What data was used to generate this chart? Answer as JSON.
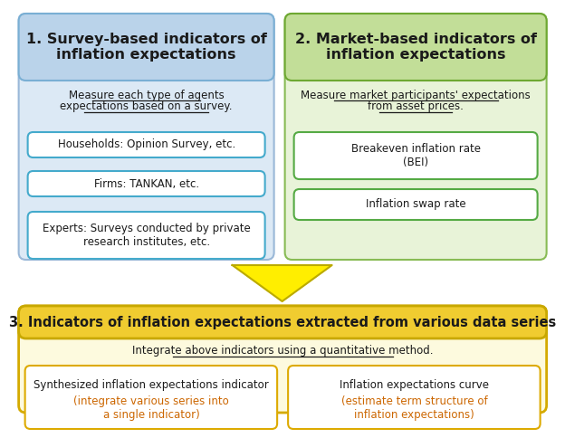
{
  "fig_width": 5.93,
  "fig_height": 4.51,
  "bg_color": "#ffffff",
  "box1_title": "1. Survey-based indicators of\ninflation expectations",
  "box1_bg": "#dce9f5",
  "box1_border": "#9ab8d8",
  "box1_header_bg": "#bad3ea",
  "box1_header_border": "#7aafd4",
  "box2_title": "2. Market-based indicators of\ninflation expectations",
  "box2_bg": "#e8f3d8",
  "box2_border": "#88bb55",
  "box2_header_bg": "#c2de98",
  "box2_header_border": "#6ea832",
  "box3_title": "3. Indicators of inflation expectations extracted from various data series",
  "box3_bg": "#fdfade",
  "box3_border": "#d4aa00",
  "box3_header_bg": "#f0cc30",
  "box3_header_border": "#c8a800",
  "survey_desc_lines": [
    "Measure each type of agents",
    "expectations based on a survey."
  ],
  "survey_items": [
    "Households: Opinion Survey, etc.",
    "Firms: TANKAN, etc.",
    "Experts: Surveys conducted by private\nresearch institutes, etc."
  ],
  "survey_item_border": "#44aacc",
  "market_desc_lines": [
    "Measure market participants' expectations",
    "from asset prices."
  ],
  "market_items": [
    "Breakeven inflation rate\n(BEI)",
    "Inflation swap rate"
  ],
  "market_item_border": "#55aa44",
  "box3_desc": "Integrate above indicators using a quantitative method.",
  "box3_items": [
    [
      "Synthesized inflation expectations indicator",
      "(integrate various series into\na single indicator)"
    ],
    [
      "Inflation expectations curve",
      "(estimate term structure of\ninflation expectations)"
    ]
  ],
  "box3_item_border": "#ddaa00",
  "box3_item_text_color_black": "#1a1a1a",
  "box3_item_text_color_orange": "#cc6600",
  "arrow_color": "#ffee00",
  "arrow_border": "#bbaa00",
  "text_color": "#1a1a1a"
}
